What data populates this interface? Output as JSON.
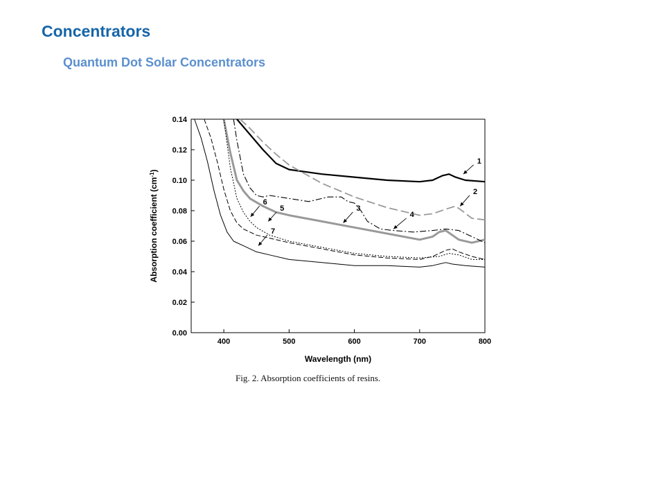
{
  "slide": {
    "title": "Concentrators",
    "subtitle": "Quantum Dot Solar Concentrators",
    "caption": "Fig. 2.  Absorption coefficients of resins."
  },
  "colors": {
    "title": "#1565a8",
    "subtitle": "#5b8fcf"
  },
  "chart_data": {
    "type": "line",
    "xlabel": "Wavelength (nm)",
    "ylabel_main": "Absorption coefficient (cm",
    "ylabel_sup": "-1",
    "ylabel_close": ")",
    "xlim": [
      350,
      800
    ],
    "ylim": [
      0,
      0.14
    ],
    "xticks": [
      400,
      500,
      600,
      700,
      800
    ],
    "yticks": [
      0.0,
      0.02,
      0.04,
      0.06,
      0.08,
      0.1,
      0.12,
      0.14
    ],
    "xtick_labels": [
      "400",
      "500",
      "600",
      "700",
      "800"
    ],
    "ytick_labels": [
      "0.00",
      "0.02",
      "0.04",
      "0.06",
      "0.08",
      "0.10",
      "0.12",
      "0.14"
    ],
    "grid": false,
    "series": [
      {
        "label": "1",
        "color": "#000000",
        "width": 2.2,
        "dash": "",
        "x": [
          420,
          430,
          440,
          450,
          460,
          480,
          500,
          550,
          600,
          650,
          700,
          720,
          735,
          745,
          755,
          770,
          800
        ],
        "y": [
          0.14,
          0.135,
          0.13,
          0.125,
          0.12,
          0.111,
          0.107,
          0.104,
          0.102,
          0.1,
          0.099,
          0.1,
          0.103,
          0.104,
          0.102,
          0.1,
          0.099
        ]
      },
      {
        "label": "2",
        "color": "#999999",
        "width": 1.8,
        "dash": "12,5",
        "x": [
          425,
          440,
          460,
          480,
          500,
          550,
          600,
          650,
          700,
          720,
          740,
          755,
          765,
          780,
          800
        ],
        "y": [
          0.14,
          0.134,
          0.125,
          0.117,
          0.11,
          0.098,
          0.089,
          0.082,
          0.077,
          0.078,
          0.081,
          0.083,
          0.08,
          0.075,
          0.074
        ]
      },
      {
        "label": "3",
        "color": "#999999",
        "width": 3,
        "dash": "",
        "x": [
          400,
          410,
          420,
          430,
          440,
          460,
          480,
          500,
          550,
          600,
          650,
          700,
          720,
          730,
          740,
          750,
          760,
          780,
          800
        ],
        "y": [
          0.14,
          0.118,
          0.1,
          0.093,
          0.088,
          0.083,
          0.079,
          0.077,
          0.073,
          0.069,
          0.065,
          0.061,
          0.063,
          0.066,
          0.067,
          0.064,
          0.061,
          0.059,
          0.061
        ]
      },
      {
        "label": "4",
        "color": "#000000",
        "width": 1.1,
        "dash": "9,3,2,3",
        "x": [
          415,
          420,
          430,
          440,
          450,
          460,
          470,
          500,
          530,
          560,
          580,
          590,
          600,
          610,
          620,
          640,
          660,
          690,
          720,
          740,
          760,
          780,
          800
        ],
        "y": [
          0.14,
          0.126,
          0.104,
          0.095,
          0.09,
          0.089,
          0.09,
          0.088,
          0.086,
          0.089,
          0.089,
          0.086,
          0.085,
          0.08,
          0.073,
          0.068,
          0.067,
          0.066,
          0.067,
          0.068,
          0.067,
          0.063,
          0.059
        ]
      },
      {
        "label": "5",
        "color": "#000000",
        "width": 1,
        "dash": "2,2",
        "x": [
          400,
          410,
          420,
          430,
          440,
          450,
          470,
          500,
          550,
          600,
          650,
          700,
          730,
          745,
          760,
          780,
          800
        ],
        "y": [
          0.14,
          0.108,
          0.088,
          0.079,
          0.073,
          0.069,
          0.064,
          0.06,
          0.056,
          0.052,
          0.05,
          0.049,
          0.05,
          0.052,
          0.051,
          0.048,
          0.048
        ]
      },
      {
        "label": "6",
        "color": "#000000",
        "width": 1,
        "dash": "7,3",
        "x": [
          370,
          380,
          390,
          400,
          410,
          420,
          430,
          450,
          470,
          500,
          550,
          600,
          650,
          700,
          720,
          740,
          750,
          760,
          780,
          800
        ],
        "y": [
          0.14,
          0.128,
          0.112,
          0.094,
          0.08,
          0.072,
          0.068,
          0.064,
          0.062,
          0.059,
          0.055,
          0.051,
          0.049,
          0.048,
          0.05,
          0.054,
          0.055,
          0.053,
          0.05,
          0.048
        ]
      },
      {
        "label": "7",
        "color": "#000000",
        "width": 1,
        "dash": "",
        "x": [
          355,
          365,
          375,
          385,
          395,
          405,
          415,
          430,
          450,
          470,
          500,
          550,
          600,
          650,
          700,
          720,
          740,
          750,
          770,
          800
        ],
        "y": [
          0.14,
          0.128,
          0.112,
          0.093,
          0.077,
          0.066,
          0.06,
          0.057,
          0.053,
          0.051,
          0.048,
          0.046,
          0.044,
          0.044,
          0.043,
          0.044,
          0.046,
          0.045,
          0.044,
          0.043
        ]
      }
    ],
    "annotations": [
      {
        "text": "1",
        "lx": 788,
        "ly": 0.111,
        "ax": 767,
        "ay": 0.104
      },
      {
        "text": "2",
        "lx": 782,
        "ly": 0.091,
        "ax": 762,
        "ay": 0.083
      },
      {
        "text": "3",
        "lx": 603,
        "ly": 0.08,
        "ax": 583,
        "ay": 0.072
      },
      {
        "text": "4",
        "lx": 685,
        "ly": 0.076,
        "ax": 660,
        "ay": 0.068
      },
      {
        "text": "5",
        "lx": 486,
        "ly": 0.08,
        "ax": 468,
        "ay": 0.073
      },
      {
        "text": "6",
        "lx": 460,
        "ly": 0.084,
        "ax": 441,
        "ay": 0.076
      },
      {
        "text": "7",
        "lx": 472,
        "ly": 0.065,
        "ax": 453,
        "ay": 0.057
      }
    ]
  }
}
